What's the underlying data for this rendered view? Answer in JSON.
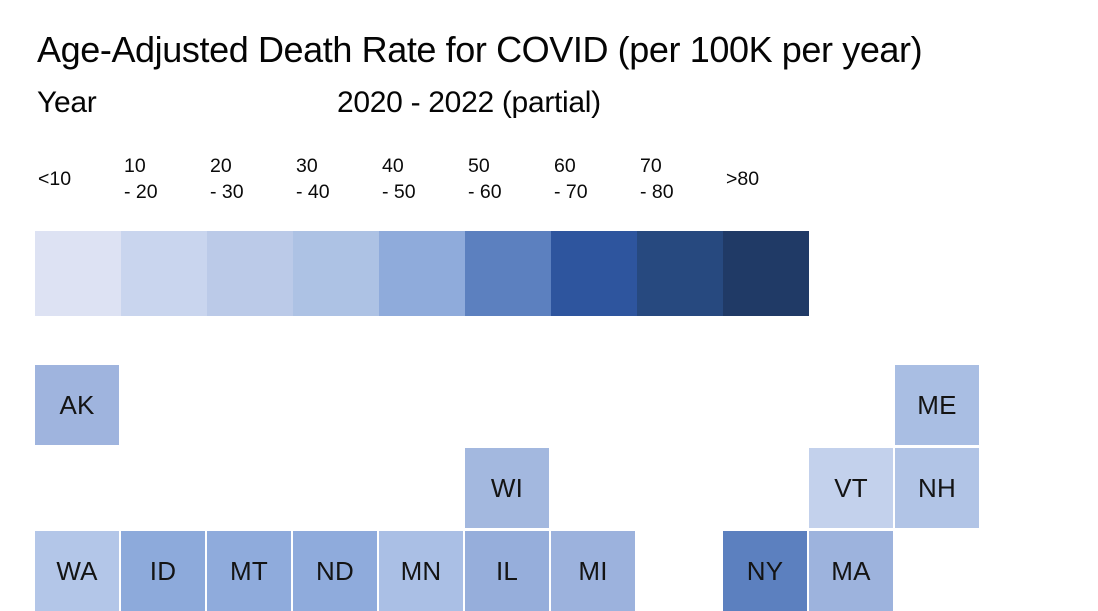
{
  "header": {
    "title": "Age-Adjusted Death Rate for COVID (per 100K per year)",
    "year_label": "Year",
    "year_value": "2020 - 2022 (partial)"
  },
  "legend": {
    "bins": [
      {
        "label_lines": [
          "<10"
        ],
        "range": "<10",
        "color": "#dde2f3"
      },
      {
        "label_lines": [
          "10",
          "- 20"
        ],
        "range": "10-20",
        "color": "#c9d5ee"
      },
      {
        "label_lines": [
          "20",
          "- 30"
        ],
        "range": "20-30",
        "color": "#bbcae8"
      },
      {
        "label_lines": [
          "30",
          "- 40"
        ],
        "range": "30-40",
        "color": "#adc2e4"
      },
      {
        "label_lines": [
          "40",
          "- 50"
        ],
        "range": "40-50",
        "color": "#8fabdb"
      },
      {
        "label_lines": [
          "50",
          "- 60"
        ],
        "range": "50-60",
        "color": "#5c80bf"
      },
      {
        "label_lines": [
          "60",
          "- 70"
        ],
        "range": "60-70",
        "color": "#2e559e"
      },
      {
        "label_lines": [
          "70",
          "- 80"
        ],
        "range": "70-80",
        "color": "#27497f"
      },
      {
        "label_lines": [
          ">80"
        ],
        "range": ">80",
        "color": "#203a66"
      }
    ]
  },
  "map": {
    "tiles": [
      {
        "state": "AK",
        "col": 1,
        "row": 1,
        "color": "#9fb4de"
      },
      {
        "state": "ME",
        "col": 11,
        "row": 1,
        "color": "#a9bee3"
      },
      {
        "state": "WI",
        "col": 6,
        "row": 2,
        "color": "#a3b8df"
      },
      {
        "state": "VT",
        "col": 10,
        "row": 2,
        "color": "#c3d1ec"
      },
      {
        "state": "NH",
        "col": 11,
        "row": 2,
        "color": "#b1c4e6"
      },
      {
        "state": "WA",
        "col": 1,
        "row": 3,
        "color": "#b3c6e8"
      },
      {
        "state": "ID",
        "col": 2,
        "row": 3,
        "color": "#8daadb"
      },
      {
        "state": "MT",
        "col": 3,
        "row": 3,
        "color": "#8fabdc"
      },
      {
        "state": "ND",
        "col": 4,
        "row": 3,
        "color": "#8fabdc"
      },
      {
        "state": "MN",
        "col": 5,
        "row": 3,
        "color": "#aabfe5"
      },
      {
        "state": "IL",
        "col": 6,
        "row": 3,
        "color": "#96aedb"
      },
      {
        "state": "MI",
        "col": 7,
        "row": 3,
        "color": "#9cb2dd"
      },
      {
        "state": "NY",
        "col": 9,
        "row": 3,
        "color": "#5c80bf"
      },
      {
        "state": "MA",
        "col": 10,
        "row": 3,
        "color": "#9db3dd"
      }
    ]
  },
  "chart_data": {
    "type": "heatmap",
    "subtype": "state-tile-grid-map",
    "title": "Age-Adjusted Death Rate for COVID (per 100K per year)",
    "subtitle": "Year 2020 - 2022 (partial)",
    "legend_position": "top",
    "legend_bins": [
      "<10",
      "10-20",
      "20-30",
      "30-40",
      "40-50",
      "50-60",
      "60-70",
      "70-80",
      ">80"
    ],
    "legend_colors": [
      "#dde2f3",
      "#c9d5ee",
      "#bbcae8",
      "#adc2e4",
      "#8fabdb",
      "#5c80bf",
      "#2e559e",
      "#27497f",
      "#203a66"
    ],
    "series": [
      {
        "state": "AK",
        "value_bin_estimate": "40-50"
      },
      {
        "state": "ME",
        "value_bin_estimate": "30-40"
      },
      {
        "state": "WI",
        "value_bin_estimate": "40-50"
      },
      {
        "state": "VT",
        "value_bin_estimate": "20-30"
      },
      {
        "state": "NH",
        "value_bin_estimate": "30-40"
      },
      {
        "state": "WA",
        "value_bin_estimate": "30-40"
      },
      {
        "state": "ID",
        "value_bin_estimate": "40-50"
      },
      {
        "state": "MT",
        "value_bin_estimate": "40-50"
      },
      {
        "state": "ND",
        "value_bin_estimate": "40-50"
      },
      {
        "state": "MN",
        "value_bin_estimate": "30-40"
      },
      {
        "state": "IL",
        "value_bin_estimate": "40-50"
      },
      {
        "state": "MI",
        "value_bin_estimate": "40-50"
      },
      {
        "state": "NY",
        "value_bin_estimate": "50-60"
      },
      {
        "state": "MA",
        "value_bin_estimate": "40-50"
      }
    ]
  }
}
